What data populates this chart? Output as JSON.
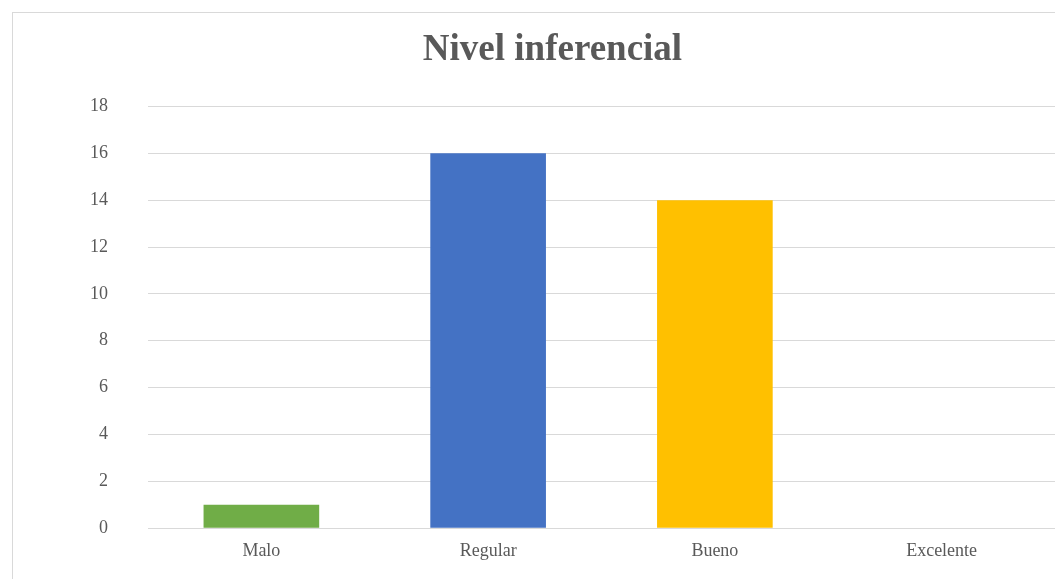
{
  "chart_data": {
    "type": "bar",
    "title": "Nivel inferencial",
    "categories": [
      "Malo",
      "Regular",
      "Bueno",
      "Excelente"
    ],
    "values": [
      1,
      16,
      14,
      0
    ],
    "colors": [
      "#70ad47",
      "#4472c4",
      "#ffc000",
      "#a5a5a5"
    ],
    "ylim": [
      0,
      18
    ],
    "yticks": [
      0,
      2,
      4,
      6,
      8,
      10,
      12,
      14,
      16,
      18
    ],
    "grid": "y",
    "legend": false
  }
}
